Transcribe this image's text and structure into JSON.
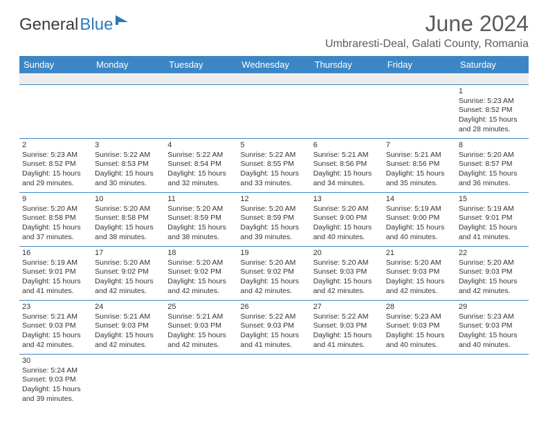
{
  "brand": {
    "part1": "General",
    "part2": "Blue"
  },
  "title": "June 2024",
  "location": "Umbraresti-Deal, Galati County, Romania",
  "header_bg": "#3d86c6",
  "days": [
    "Sunday",
    "Monday",
    "Tuesday",
    "Wednesday",
    "Thursday",
    "Friday",
    "Saturday"
  ],
  "weeks": [
    [
      null,
      null,
      null,
      null,
      null,
      null,
      {
        "n": "1",
        "sr": "Sunrise: 5:23 AM",
        "ss": "Sunset: 8:52 PM",
        "dl1": "Daylight: 15 hours",
        "dl2": "and 28 minutes."
      }
    ],
    [
      {
        "n": "2",
        "sr": "Sunrise: 5:23 AM",
        "ss": "Sunset: 8:52 PM",
        "dl1": "Daylight: 15 hours",
        "dl2": "and 29 minutes."
      },
      {
        "n": "3",
        "sr": "Sunrise: 5:22 AM",
        "ss": "Sunset: 8:53 PM",
        "dl1": "Daylight: 15 hours",
        "dl2": "and 30 minutes."
      },
      {
        "n": "4",
        "sr": "Sunrise: 5:22 AM",
        "ss": "Sunset: 8:54 PM",
        "dl1": "Daylight: 15 hours",
        "dl2": "and 32 minutes."
      },
      {
        "n": "5",
        "sr": "Sunrise: 5:22 AM",
        "ss": "Sunset: 8:55 PM",
        "dl1": "Daylight: 15 hours",
        "dl2": "and 33 minutes."
      },
      {
        "n": "6",
        "sr": "Sunrise: 5:21 AM",
        "ss": "Sunset: 8:56 PM",
        "dl1": "Daylight: 15 hours",
        "dl2": "and 34 minutes."
      },
      {
        "n": "7",
        "sr": "Sunrise: 5:21 AM",
        "ss": "Sunset: 8:56 PM",
        "dl1": "Daylight: 15 hours",
        "dl2": "and 35 minutes."
      },
      {
        "n": "8",
        "sr": "Sunrise: 5:20 AM",
        "ss": "Sunset: 8:57 PM",
        "dl1": "Daylight: 15 hours",
        "dl2": "and 36 minutes."
      }
    ],
    [
      {
        "n": "9",
        "sr": "Sunrise: 5:20 AM",
        "ss": "Sunset: 8:58 PM",
        "dl1": "Daylight: 15 hours",
        "dl2": "and 37 minutes."
      },
      {
        "n": "10",
        "sr": "Sunrise: 5:20 AM",
        "ss": "Sunset: 8:58 PM",
        "dl1": "Daylight: 15 hours",
        "dl2": "and 38 minutes."
      },
      {
        "n": "11",
        "sr": "Sunrise: 5:20 AM",
        "ss": "Sunset: 8:59 PM",
        "dl1": "Daylight: 15 hours",
        "dl2": "and 38 minutes."
      },
      {
        "n": "12",
        "sr": "Sunrise: 5:20 AM",
        "ss": "Sunset: 8:59 PM",
        "dl1": "Daylight: 15 hours",
        "dl2": "and 39 minutes."
      },
      {
        "n": "13",
        "sr": "Sunrise: 5:20 AM",
        "ss": "Sunset: 9:00 PM",
        "dl1": "Daylight: 15 hours",
        "dl2": "and 40 minutes."
      },
      {
        "n": "14",
        "sr": "Sunrise: 5:19 AM",
        "ss": "Sunset: 9:00 PM",
        "dl1": "Daylight: 15 hours",
        "dl2": "and 40 minutes."
      },
      {
        "n": "15",
        "sr": "Sunrise: 5:19 AM",
        "ss": "Sunset: 9:01 PM",
        "dl1": "Daylight: 15 hours",
        "dl2": "and 41 minutes."
      }
    ],
    [
      {
        "n": "16",
        "sr": "Sunrise: 5:19 AM",
        "ss": "Sunset: 9:01 PM",
        "dl1": "Daylight: 15 hours",
        "dl2": "and 41 minutes."
      },
      {
        "n": "17",
        "sr": "Sunrise: 5:20 AM",
        "ss": "Sunset: 9:02 PM",
        "dl1": "Daylight: 15 hours",
        "dl2": "and 42 minutes."
      },
      {
        "n": "18",
        "sr": "Sunrise: 5:20 AM",
        "ss": "Sunset: 9:02 PM",
        "dl1": "Daylight: 15 hours",
        "dl2": "and 42 minutes."
      },
      {
        "n": "19",
        "sr": "Sunrise: 5:20 AM",
        "ss": "Sunset: 9:02 PM",
        "dl1": "Daylight: 15 hours",
        "dl2": "and 42 minutes."
      },
      {
        "n": "20",
        "sr": "Sunrise: 5:20 AM",
        "ss": "Sunset: 9:03 PM",
        "dl1": "Daylight: 15 hours",
        "dl2": "and 42 minutes."
      },
      {
        "n": "21",
        "sr": "Sunrise: 5:20 AM",
        "ss": "Sunset: 9:03 PM",
        "dl1": "Daylight: 15 hours",
        "dl2": "and 42 minutes."
      },
      {
        "n": "22",
        "sr": "Sunrise: 5:20 AM",
        "ss": "Sunset: 9:03 PM",
        "dl1": "Daylight: 15 hours",
        "dl2": "and 42 minutes."
      }
    ],
    [
      {
        "n": "23",
        "sr": "Sunrise: 5:21 AM",
        "ss": "Sunset: 9:03 PM",
        "dl1": "Daylight: 15 hours",
        "dl2": "and 42 minutes."
      },
      {
        "n": "24",
        "sr": "Sunrise: 5:21 AM",
        "ss": "Sunset: 9:03 PM",
        "dl1": "Daylight: 15 hours",
        "dl2": "and 42 minutes."
      },
      {
        "n": "25",
        "sr": "Sunrise: 5:21 AM",
        "ss": "Sunset: 9:03 PM",
        "dl1": "Daylight: 15 hours",
        "dl2": "and 42 minutes."
      },
      {
        "n": "26",
        "sr": "Sunrise: 5:22 AM",
        "ss": "Sunset: 9:03 PM",
        "dl1": "Daylight: 15 hours",
        "dl2": "and 41 minutes."
      },
      {
        "n": "27",
        "sr": "Sunrise: 5:22 AM",
        "ss": "Sunset: 9:03 PM",
        "dl1": "Daylight: 15 hours",
        "dl2": "and 41 minutes."
      },
      {
        "n": "28",
        "sr": "Sunrise: 5:23 AM",
        "ss": "Sunset: 9:03 PM",
        "dl1": "Daylight: 15 hours",
        "dl2": "and 40 minutes."
      },
      {
        "n": "29",
        "sr": "Sunrise: 5:23 AM",
        "ss": "Sunset: 9:03 PM",
        "dl1": "Daylight: 15 hours",
        "dl2": "and 40 minutes."
      }
    ],
    [
      {
        "n": "30",
        "sr": "Sunrise: 5:24 AM",
        "ss": "Sunset: 9:03 PM",
        "dl1": "Daylight: 15 hours",
        "dl2": "and 39 minutes."
      },
      null,
      null,
      null,
      null,
      null,
      null
    ]
  ]
}
